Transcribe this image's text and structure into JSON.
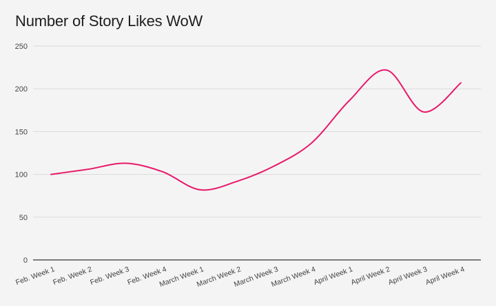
{
  "chart_data": {
    "type": "line",
    "title": "Number of Story Likes WoW",
    "xlabel": "",
    "ylabel": "",
    "categories": [
      "Feb. Week 1",
      "Feb. Week 2",
      "Feb. Week 3",
      "Feb. Week 4",
      "March Week 1",
      "March Week 2",
      "March Week 3",
      "March Week 4",
      "April Week 1",
      "April Week 2",
      "April Week 3",
      "April Week 4"
    ],
    "series": [
      {
        "values": [
          100,
          106,
          113,
          103,
          82,
          92,
          110,
          137,
          186,
          222,
          173,
          207
        ],
        "color": "#e8186a"
      }
    ],
    "ylim": [
      0,
      250
    ],
    "yticks": [
      0,
      50,
      100,
      150,
      200,
      250
    ],
    "grid": true,
    "legend": "none"
  }
}
